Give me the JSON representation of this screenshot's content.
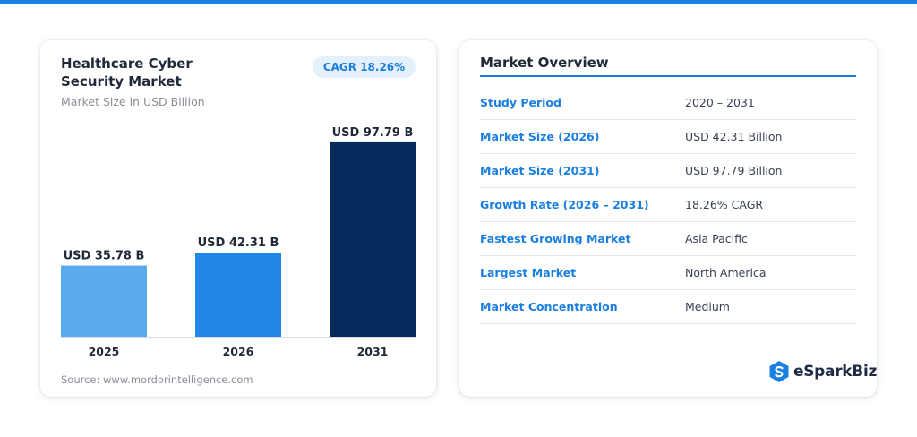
{
  "chart_data": {
    "type": "bar",
    "title": "Healthcare Cyber Security Market",
    "subtitle": "Market Size in USD Billion",
    "badge": "CAGR 18.26%",
    "categories": [
      "2025",
      "2026",
      "2031"
    ],
    "values": [
      35.78,
      42.31,
      97.79
    ],
    "data_labels": [
      "USD 35.78 B",
      "USD 42.31 B",
      "USD 97.79 B"
    ],
    "colors": [
      "#5aaaf0",
      "#2086e8",
      "#062a5c"
    ],
    "xlabel": "",
    "ylabel": "",
    "ylim": [
      0,
      100
    ],
    "grid": false,
    "source": "Source: www.mordorintelligence.com"
  },
  "overview": {
    "title": "Market Overview",
    "rows": [
      {
        "label": "Study Period",
        "value": "2020 – 2031"
      },
      {
        "label": "Market Size (2026)",
        "value": "USD 42.31 Billion"
      },
      {
        "label": "Market Size (2031)",
        "value": "USD 97.79 Billion"
      },
      {
        "label": "Growth Rate (2026 – 2031)",
        "value": "18.26% CAGR"
      },
      {
        "label": "Fastest Growing Market",
        "value": "Asia Pacific"
      },
      {
        "label": "Largest Market",
        "value": "North America"
      },
      {
        "label": "Market Concentration",
        "value": "Medium"
      }
    ]
  },
  "brand": {
    "logo_text": "eSparkBiz",
    "icon": "hexagon-s-icon",
    "accent": "#1a7fe0"
  }
}
